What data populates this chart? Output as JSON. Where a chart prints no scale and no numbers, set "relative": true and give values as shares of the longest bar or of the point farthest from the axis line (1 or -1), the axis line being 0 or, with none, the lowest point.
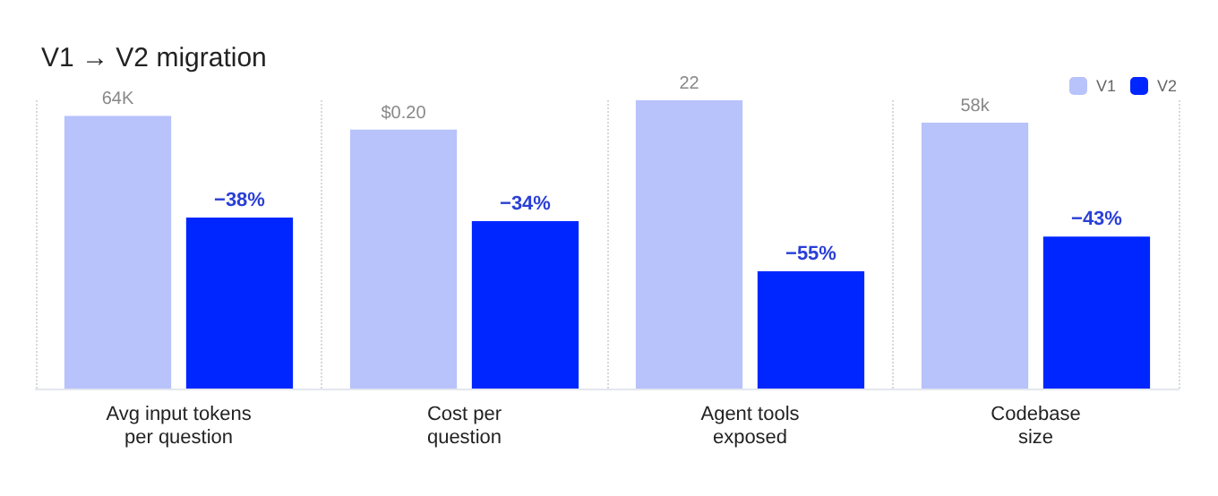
{
  "chart_data": {
    "type": "bar",
    "title": "V1 → V2 migration",
    "relative": true,
    "categories": [
      "Avg input tokens\nper question",
      "Cost per\nquestion",
      "Agent tools\nexposed",
      "Codebase\nsize"
    ],
    "series": [
      {
        "name": "V1",
        "color": "#b8c2fb",
        "values": [
          0.946,
          0.898,
          1,
          0.922
        ]
      },
      {
        "name": "V2",
        "color": "#0026ff",
        "values": [
          0.593,
          0.581,
          0.407,
          0.527
        ]
      }
    ],
    "annotations": [
      {
        "text": "64K",
        "x": "Avg input tokens\nper question",
        "y": 0.946
      },
      {
        "text": "$0.20",
        "x": "Cost per\nquestion",
        "y": 0.898
      },
      {
        "text": "22",
        "x": "Agent tools\nexposed",
        "y": 1
      },
      {
        "text": "58k",
        "x": "Codebase\nsize",
        "y": 0.922
      },
      {
        "text": "−38%",
        "x": "Avg input tokens\nper question",
        "y": 0.593
      },
      {
        "text": "−34%",
        "x": "Cost per\nquestion",
        "y": 0.581
      },
      {
        "text": "−55%",
        "x": "Agent tools\nexposed",
        "y": 0.407
      },
      {
        "text": "−43%",
        "x": "Codebase\nsize",
        "y": 0.527
      }
    ],
    "grid": "x",
    "legend": "top right"
  }
}
